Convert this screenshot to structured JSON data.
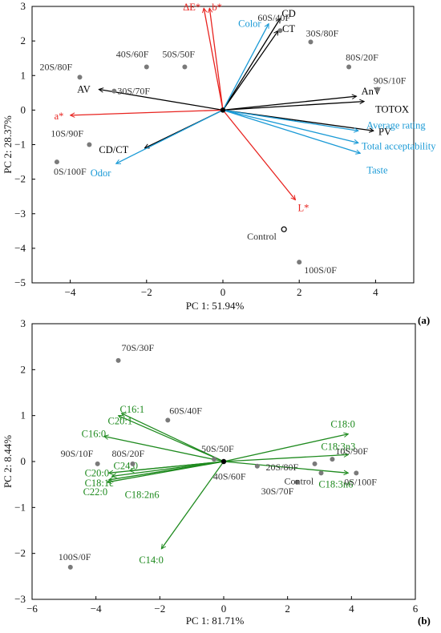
{
  "chart_data": [
    {
      "type": "scatter",
      "panel_label": "(a)",
      "xlabel": "PC 1: 51.94%",
      "ylabel": "PC 2: 28.37%",
      "xlim": [
        -5,
        5
      ],
      "ylim": [
        -5,
        3
      ],
      "xticks": [
        -4,
        -2,
        0,
        2,
        4
      ],
      "yticks": [
        3,
        2,
        1,
        0,
        -1,
        -2,
        -3,
        -4,
        -5
      ],
      "points": [
        {
          "label": "60S/40F",
          "x": 1.5,
          "y": 2.3
        },
        {
          "label": "30S/80F",
          "x": 2.3,
          "y": 1.97
        },
        {
          "label": "80S/20F",
          "x": 3.3,
          "y": 1.25
        },
        {
          "label": "90S/10F",
          "x": 4.05,
          "y": 0.6
        },
        {
          "label": "20S/80F",
          "x": -3.75,
          "y": 0.95
        },
        {
          "label": "40S/60F",
          "x": -2.0,
          "y": 1.25
        },
        {
          "label": "50S/50F",
          "x": -1.0,
          "y": 1.25
        },
        {
          "label": "30S/70F",
          "x": -2.85,
          "y": 0.55
        },
        {
          "label": "10S/90F",
          "x": -3.5,
          "y": -1.0
        },
        {
          "label": "0S/100F",
          "x": -4.35,
          "y": -1.5
        },
        {
          "label": "100S/0F",
          "x": 2.0,
          "y": -4.4
        },
        {
          "label": "Control",
          "x": 1.6,
          "y": -3.45,
          "hollow": true
        }
      ],
      "vectors": [
        {
          "label": "CD",
          "x": 1.5,
          "y": 2.65,
          "color": "#000000"
        },
        {
          "label": "CT",
          "x": 1.45,
          "y": 2.3,
          "color": "#000000"
        },
        {
          "label": "AV",
          "x": -3.25,
          "y": 0.6,
          "color": "#000000"
        },
        {
          "label": "AnV",
          "x": 3.5,
          "y": 0.4,
          "color": "#000000"
        },
        {
          "label": "TOTOX",
          "x": 3.7,
          "y": 0.25,
          "color": "#000000"
        },
        {
          "label": "PV",
          "x": 3.95,
          "y": -0.6,
          "color": "#000000"
        },
        {
          "label": "CD/CT",
          "x": -2.05,
          "y": -1.1,
          "color": "#000000"
        },
        {
          "label": "Color",
          "x": 1.2,
          "y": 2.5,
          "color": "#1a9ad6"
        },
        {
          "label": "Average rating",
          "x": 3.55,
          "y": -0.6,
          "color": "#1a9ad6"
        },
        {
          "label": "Total acceptability",
          "x": 3.55,
          "y": -0.95,
          "color": "#1a9ad6"
        },
        {
          "label": "Taste",
          "x": 3.6,
          "y": -1.25,
          "color": "#1a9ad6"
        },
        {
          "label": "Odor",
          "x": -2.8,
          "y": -1.55,
          "color": "#1a9ad6"
        },
        {
          "label": "ΔE*",
          "x": -0.5,
          "y": 2.95,
          "color": "#e8231f"
        },
        {
          "label": "b*",
          "x": -0.35,
          "y": 2.95,
          "color": "#e8231f"
        },
        {
          "label": "a*",
          "x": -4.0,
          "y": -0.15,
          "color": "#e8231f"
        },
        {
          "label": "L*",
          "x": 1.9,
          "y": -2.6,
          "color": "#e8231f"
        }
      ]
    },
    {
      "type": "scatter",
      "panel_label": "(b)",
      "xlabel": "PC 1: 81.71%",
      "ylabel": "PC 2: 8.44%",
      "xlim": [
        -6,
        6
      ],
      "ylim": [
        -3,
        3
      ],
      "xticks": [
        -6,
        -4,
        -2,
        0,
        2,
        4,
        6
      ],
      "yticks": [
        3,
        2,
        1,
        0,
        -1,
        -2,
        -3
      ],
      "points": [
        {
          "label": "70S/30F",
          "x": -3.3,
          "y": 2.2
        },
        {
          "label": "60S/40F",
          "x": -1.75,
          "y": 0.9
        },
        {
          "label": "50S/50F",
          "x": -0.3,
          "y": 0.05
        },
        {
          "label": "90S/10F",
          "x": -3.95,
          "y": -0.05
        },
        {
          "label": "80S/20F",
          "x": -2.85,
          "y": -0.05
        },
        {
          "label": "40S/60F",
          "x": 1.05,
          "y": -0.1
        },
        {
          "label": "20S/80F",
          "x": 2.85,
          "y": -0.05
        },
        {
          "label": "10S/90F",
          "x": 3.4,
          "y": 0.05
        },
        {
          "label": "0S/100F",
          "x": 4.15,
          "y": -0.25
        },
        {
          "label": "30S/70F",
          "x": 2.3,
          "y": -0.45
        },
        {
          "label": "Control",
          "x": 3.05,
          "y": -0.25
        },
        {
          "label": "100S/0F",
          "x": -4.8,
          "y": -2.3
        }
      ],
      "vectors": [
        {
          "label": "C16:1",
          "x": -3.2,
          "y": 1.05,
          "color": "#1e8a1e"
        },
        {
          "label": "C20:1",
          "x": -3.3,
          "y": 1.0,
          "color": "#1e8a1e"
        },
        {
          "label": "C16:0",
          "x": -3.75,
          "y": 0.55,
          "color": "#1e8a1e"
        },
        {
          "label": "C20:0",
          "x": -3.6,
          "y": -0.25,
          "color": "#1e8a1e"
        },
        {
          "label": "C18:1c",
          "x": -3.6,
          "y": -0.4,
          "color": "#1e8a1e"
        },
        {
          "label": "C22:0",
          "x": -3.65,
          "y": -0.45,
          "color": "#1e8a1e"
        },
        {
          "label": "C18:2n6",
          "x": -3.5,
          "y": -0.32,
          "color": "#1e8a1e"
        },
        {
          "label": "C24:0",
          "x": -2.95,
          "y": -0.2,
          "color": "#1e8a1e"
        },
        {
          "label": "C14:0",
          "x": -1.95,
          "y": -1.9,
          "color": "#1e8a1e"
        },
        {
          "label": "C18:0",
          "x": 3.9,
          "y": 0.6,
          "color": "#1e8a1e"
        },
        {
          "label": "C18:3n3",
          "x": 3.9,
          "y": 0.15,
          "color": "#1e8a1e"
        },
        {
          "label": "C18:3n6",
          "x": 3.9,
          "y": -0.25,
          "color": "#1e8a1e"
        }
      ]
    }
  ]
}
